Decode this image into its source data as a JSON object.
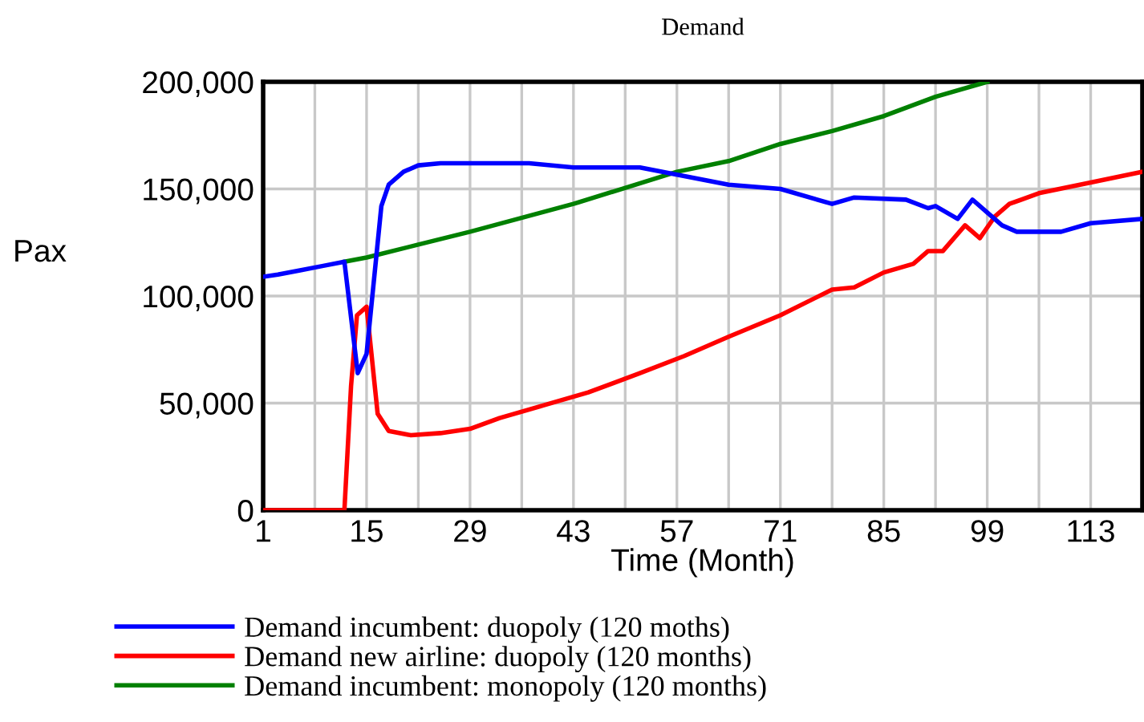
{
  "chart_data": {
    "type": "line",
    "title": "Demand",
    "xlabel": "Time (Month)",
    "ylabel": "Pax",
    "xlim": [
      1,
      120
    ],
    "ylim": [
      0,
      200000
    ],
    "xticks": [
      1,
      {
        "value": 8,
        "label": null
      },
      15,
      {
        "value": 22,
        "label": null
      },
      29,
      {
        "value": 36,
        "label": null
      },
      43,
      {
        "value": 50,
        "label": null
      },
      57,
      {
        "value": 64,
        "label": null
      },
      71,
      {
        "value": 78,
        "label": null
      },
      85,
      {
        "value": 92,
        "label": null
      },
      99,
      {
        "value": 106,
        "label": null
      },
      113
    ],
    "yticks": [
      {
        "value": 0,
        "label": "0"
      },
      {
        "value": 50000,
        "label": "50,000"
      },
      {
        "value": 100000,
        "label": "100,000"
      },
      {
        "value": 150000,
        "label": "150,000"
      },
      {
        "value": 200000,
        "label": "200,000"
      }
    ],
    "grid": true,
    "legend": "bottom",
    "line_style": "solid",
    "marker": "none",
    "series": [
      {
        "name": "Demand incumbent: duopoly (120 moths)",
        "color": "#0000ff",
        "x": [
          1,
          3,
          6,
          9,
          12,
          13.8,
          15,
          17,
          18,
          20,
          22,
          25,
          37,
          43,
          52,
          58,
          64,
          71,
          78,
          81,
          88,
          91,
          92,
          95,
          97,
          99,
          101,
          103,
          109,
          113,
          120
        ],
        "values": [
          109000,
          110000,
          112000,
          114000,
          116000,
          64000,
          73000,
          142000,
          152000,
          158000,
          161000,
          162000,
          162000,
          160000,
          160000,
          156000,
          152000,
          150000,
          143000,
          146000,
          145000,
          141000,
          142000,
          136000,
          145000,
          139000,
          133000,
          130000,
          130000,
          134000,
          136000
        ]
      },
      {
        "name": "Demand new airline: duopoly (120 months)",
        "color": "#ff0000",
        "x": [
          1,
          12,
          12.9,
          13.7,
          15,
          16.5,
          18,
          21,
          25,
          29,
          33,
          39,
          45,
          52,
          58,
          64,
          71,
          78,
          81,
          85,
          89,
          91,
          93,
          96,
          98,
          100,
          102,
          106,
          113,
          120
        ],
        "values": [
          0,
          0,
          58000,
          91000,
          95000,
          45000,
          37000,
          35000,
          36000,
          38000,
          43000,
          49000,
          55000,
          64000,
          72000,
          81000,
          91000,
          103000,
          104000,
          111000,
          115000,
          121000,
          121000,
          133000,
          127000,
          137000,
          143000,
          148000,
          153000,
          158000
        ]
      },
      {
        "name": "Demand incumbent: monopoly (120 months)",
        "color": "#008000",
        "x": [
          12,
          15,
          22,
          29,
          43,
          57,
          64,
          71,
          78,
          85,
          92,
          99
        ],
        "values": [
          116000,
          118000,
          124000,
          130000,
          143000,
          158000,
          163000,
          171000,
          177000,
          184000,
          193000,
          200000
        ]
      }
    ]
  }
}
